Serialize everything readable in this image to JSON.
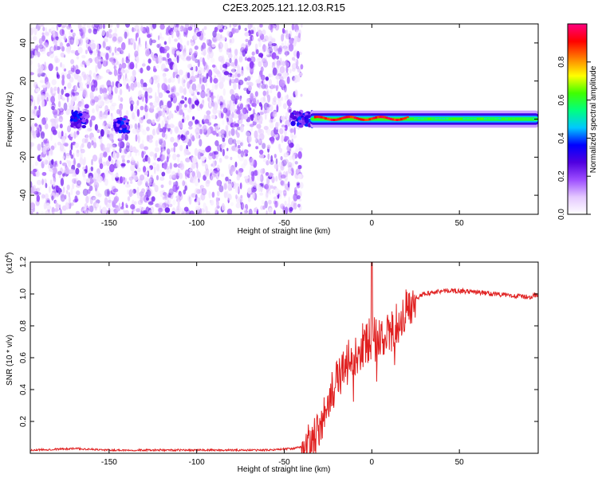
{
  "title": "C2E3.2025.121.12.03.R15",
  "chart_data": [
    {
      "type": "heatmap",
      "xlabel": "Height of straight line (km)",
      "ylabel": "Frequency (Hz)",
      "xlim": [
        -195,
        95
      ],
      "ylim": [
        -50,
        50
      ],
      "xticks": [
        -150,
        -100,
        -50,
        0,
        50
      ],
      "yticks": [
        -40,
        -20,
        0,
        20,
        40
      ],
      "colorbar": {
        "label": "Normalized spectral amplitude",
        "range": [
          0,
          1
        ],
        "ticks": [
          0.0,
          0.2,
          0.4,
          0.6,
          0.8
        ],
        "tick_labels": [
          "0.0",
          "0.2",
          "0.4",
          "0.6",
          "0.8"
        ],
        "colors": [
          "#ffffff",
          "#e4c8ff",
          "#9d4dff",
          "#5000e0",
          "#0000ff",
          "#00c8ff",
          "#00ff80",
          "#40ff00",
          "#ffff00",
          "#ff8000",
          "#ff0000",
          "#ff0080"
        ]
      },
      "noise_region_x": [
        -195,
        -40
      ],
      "signal_start_x": -45,
      "signal_center_hz": 0,
      "grid": false
    },
    {
      "type": "line",
      "xlabel": "Height of straight line (km)",
      "ylabel": "SNR (10 * v/v)",
      "y_multiplier_label": "(x10",
      "y_multiplier_exp": "4",
      "y_multiplier_close": ")",
      "xlim": [
        -195,
        95
      ],
      "ylim": [
        0,
        1.2
      ],
      "xticks": [
        -150,
        -100,
        -50,
        0,
        50
      ],
      "yticks": [
        0.2,
        0.4,
        0.6,
        0.8,
        1.0,
        1.2
      ],
      "ytick_labels": [
        "0.2",
        "0.4",
        "0.6",
        "0.8",
        "1.0",
        "1.2"
      ],
      "series_color": "#e02020",
      "x": [
        -195,
        -170,
        -150,
        -100,
        -60,
        -45,
        -40,
        -35,
        -30,
        -25,
        -20,
        -15,
        -10,
        -5,
        0,
        5,
        10,
        15,
        20,
        25,
        30,
        40,
        50,
        60,
        70,
        80,
        90,
        95
      ],
      "y": [
        0.02,
        0.03,
        0.02,
        0.02,
        0.02,
        0.03,
        0.04,
        0.06,
        0.12,
        0.32,
        0.45,
        0.55,
        0.62,
        0.68,
        0.72,
        0.7,
        0.75,
        0.82,
        0.9,
        0.97,
        1.0,
        1.02,
        1.02,
        1.01,
        1.0,
        0.99,
        0.98,
        1.0
      ],
      "grid": false
    }
  ]
}
